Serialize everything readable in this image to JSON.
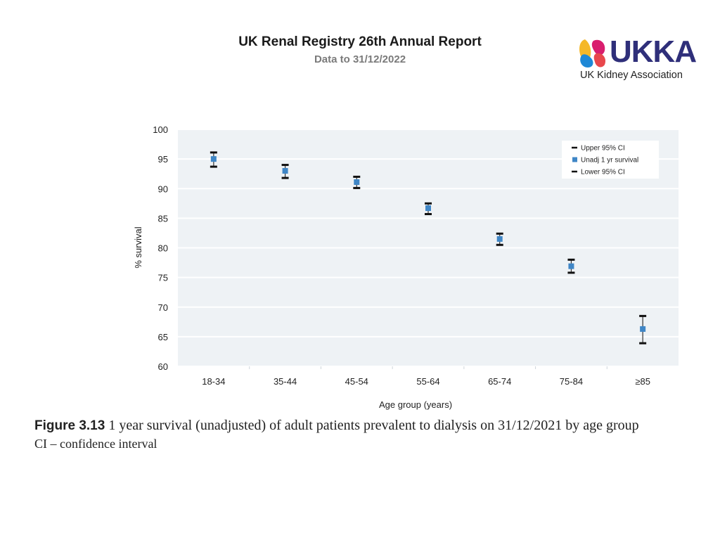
{
  "header": {
    "title": "UK Renal Registry 26th Annual Report",
    "subtitle": "Data to 31/12/2022"
  },
  "logo": {
    "wordmark": "UKKA",
    "name": "UK Kidney Association",
    "colors": {
      "text": "#2f2f7a",
      "shape_yellow": "#f5b829",
      "shape_blue": "#1e88d6",
      "shape_pink": "#d91e6e",
      "shape_red": "#e8474c"
    }
  },
  "chart_data": {
    "type": "scatter",
    "title": "",
    "xlabel": "Age group (years)",
    "ylabel": "% survival",
    "ylim": [
      60,
      100
    ],
    "yticks": [
      60,
      65,
      70,
      75,
      80,
      85,
      90,
      95,
      100
    ],
    "categories": [
      "18-34",
      "35-44",
      "45-54",
      "55-64",
      "65-74",
      "75-84",
      "≥85"
    ],
    "series": [
      {
        "name": "Upper 95% CI",
        "values": [
          96.1,
          94.0,
          92.0,
          87.5,
          82.4,
          78.0,
          68.5
        ],
        "color": "#111111"
      },
      {
        "name": "Unadj 1 yr survival",
        "values": [
          95.0,
          93.0,
          91.1,
          86.7,
          81.5,
          76.9,
          66.3
        ],
        "color": "#3f86c6"
      },
      {
        "name": "Lower 95% CI",
        "values": [
          93.7,
          91.8,
          90.1,
          85.7,
          80.5,
          75.8,
          63.9
        ],
        "color": "#111111"
      }
    ],
    "grid": true,
    "legend_position": "top-right",
    "plot_background": "#eef2f5"
  },
  "caption": {
    "label": "Figure 3.13",
    "text": " 1 year survival (unadjusted) of adult patients prevalent to dialysis on 31/12/2021 by age group",
    "note": "CI – confidence interval"
  }
}
